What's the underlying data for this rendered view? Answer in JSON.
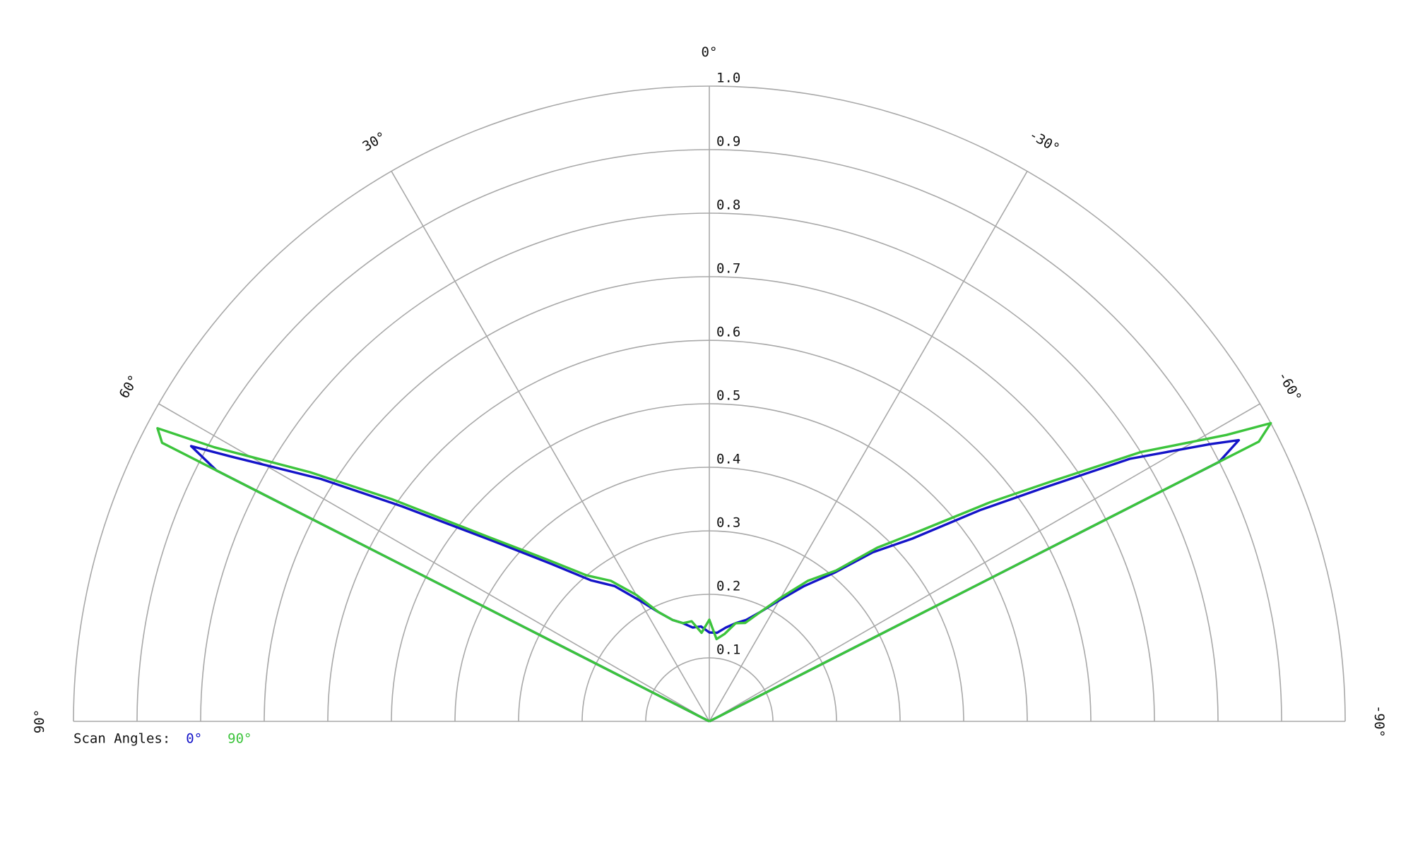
{
  "chart_data": {
    "type": "polar",
    "legend_title": "Scan Angles:",
    "thetalim": [
      -90,
      90
    ],
    "thetaticks": [
      {
        "value": 90,
        "label": "90°"
      },
      {
        "value": 60,
        "label": "60°"
      },
      {
        "value": 30,
        "label": "30°"
      },
      {
        "value": 0,
        "label": "0°"
      },
      {
        "value": -30,
        "label": "-30°"
      },
      {
        "value": -60,
        "label": "-60°"
      },
      {
        "value": -90,
        "label": "-90°"
      }
    ],
    "rlim": [
      0,
      1
    ],
    "rticks": [
      0.1,
      0.2,
      0.3,
      0.4,
      0.5,
      0.6,
      0.7,
      0.8,
      0.9,
      {
        "value": 1,
        "label": "1.0"
      }
    ],
    "grid": true,
    "x": [
      -90,
      -64,
      -63,
      -62,
      -61,
      -58,
      -55,
      -52,
      -48,
      -44,
      -40,
      -35,
      -30,
      -25,
      -20,
      -15,
      -10,
      -5,
      0,
      5,
      10,
      15,
      20,
      25,
      30,
      35,
      40,
      45,
      50,
      55,
      58,
      61,
      62,
      63,
      64,
      90
    ],
    "series": [
      {
        "name": "0°",
        "color": "#1414c8",
        "values": [
          0,
          0,
          0.9,
          0.943,
          0.9,
          0.78,
          0.64,
          0.54,
          0.43,
          0.37,
          0.305,
          0.26,
          0.22,
          0.19,
          0.17,
          0.16,
          0.15,
          0.14,
          0.14,
          0.15,
          0.15,
          0.16,
          0.17,
          0.19,
          0.22,
          0.26,
          0.29,
          0.35,
          0.44,
          0.59,
          0.72,
          0.86,
          0.923,
          0.87,
          0,
          0
        ]
      },
      {
        "name": "90°",
        "color": "#3cc43c",
        "values": [
          0,
          0,
          0.97,
          1.0,
          0.93,
          0.8,
          0.66,
          0.56,
          0.45,
          0.38,
          0.31,
          0.27,
          0.225,
          0.19,
          0.165,
          0.16,
          0.14,
          0.13,
          0.16,
          0.14,
          0.16,
          0.16,
          0.17,
          0.19,
          0.23,
          0.27,
          0.3,
          0.36,
          0.45,
          0.61,
          0.74,
          0.89,
          0.983,
          0.966,
          0,
          0
        ]
      }
    ]
  }
}
